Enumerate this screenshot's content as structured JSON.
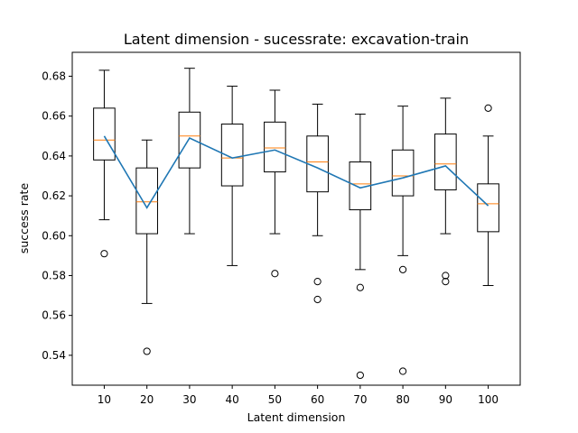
{
  "chart_data": {
    "type": "box",
    "title": "Latent dimension - sucessrate: excavation-train",
    "xlabel": "Latent dimension",
    "ylabel": "success rate",
    "ylim": [
      0.525,
      0.692
    ],
    "yticks": [
      "0.54",
      "0.56",
      "0.58",
      "0.60",
      "0.62",
      "0.64",
      "0.66",
      "0.68"
    ],
    "categories": [
      "10",
      "20",
      "30",
      "40",
      "50",
      "60",
      "70",
      "80",
      "90",
      "100"
    ],
    "boxes": [
      {
        "category": "10",
        "whisker_low": 0.608,
        "q1": 0.638,
        "median": 0.648,
        "q3": 0.664,
        "whisker_high": 0.683,
        "outliers": [
          0.591
        ]
      },
      {
        "category": "20",
        "whisker_low": 0.566,
        "q1": 0.601,
        "median": 0.617,
        "q3": 0.634,
        "whisker_high": 0.648,
        "outliers": [
          0.542
        ]
      },
      {
        "category": "30",
        "whisker_low": 0.601,
        "q1": 0.634,
        "median": 0.65,
        "q3": 0.662,
        "whisker_high": 0.684,
        "outliers": []
      },
      {
        "category": "40",
        "whisker_low": 0.585,
        "q1": 0.625,
        "median": 0.639,
        "q3": 0.656,
        "whisker_high": 0.675,
        "outliers": []
      },
      {
        "category": "50",
        "whisker_low": 0.601,
        "q1": 0.632,
        "median": 0.644,
        "q3": 0.657,
        "whisker_high": 0.673,
        "outliers": [
          0.581
        ]
      },
      {
        "category": "60",
        "whisker_low": 0.6,
        "q1": 0.622,
        "median": 0.637,
        "q3": 0.65,
        "whisker_high": 0.666,
        "outliers": [
          0.577,
          0.568
        ]
      },
      {
        "category": "70",
        "whisker_low": 0.583,
        "q1": 0.613,
        "median": 0.626,
        "q3": 0.637,
        "whisker_high": 0.661,
        "outliers": [
          0.574,
          0.53
        ]
      },
      {
        "category": "80",
        "whisker_low": 0.59,
        "q1": 0.62,
        "median": 0.63,
        "q3": 0.643,
        "whisker_high": 0.665,
        "outliers": [
          0.583,
          0.532
        ]
      },
      {
        "category": "90",
        "whisker_low": 0.601,
        "q1": 0.623,
        "median": 0.636,
        "q3": 0.651,
        "whisker_high": 0.669,
        "outliers": [
          0.58,
          0.577
        ]
      },
      {
        "category": "100",
        "whisker_low": 0.575,
        "q1": 0.602,
        "median": 0.616,
        "q3": 0.626,
        "whisker_high": 0.65,
        "outliers": [
          0.664
        ]
      }
    ],
    "mean_line": [
      0.65,
      0.614,
      0.649,
      0.639,
      0.643,
      0.634,
      0.624,
      0.629,
      0.635,
      0.615
    ],
    "grid": false,
    "colors": {
      "box": "#000000",
      "median": "#ff7f0e",
      "mean_line": "#1f77b4",
      "background": "#ffffff"
    }
  }
}
